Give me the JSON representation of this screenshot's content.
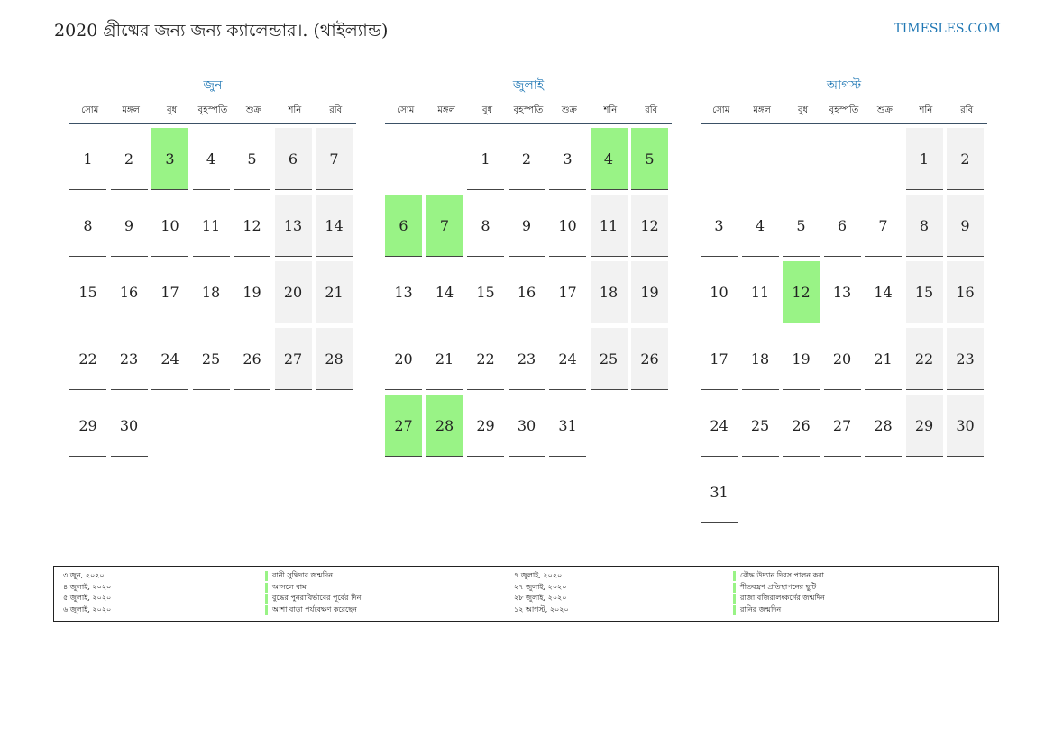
{
  "header": {
    "title": "2020 গ্রীষ্মের জন্য জন্য ক্যালেন্ডার।. (থাইল্যান্ড)",
    "site": "TIMESLES.COM"
  },
  "weekdays": [
    "সোম",
    "মঙ্গল",
    "বুধ",
    "বৃহস্পতি",
    "শুক্র",
    "শনি",
    "রবি"
  ],
  "months": [
    {
      "name": "জুন",
      "weeks": [
        [
          {
            "d": "1"
          },
          {
            "d": "2"
          },
          {
            "d": "3",
            "h": true
          },
          {
            "d": "4"
          },
          {
            "d": "5"
          },
          {
            "d": "6",
            "w": true
          },
          {
            "d": "7",
            "w": true
          }
        ],
        [
          {
            "d": "8"
          },
          {
            "d": "9"
          },
          {
            "d": "10"
          },
          {
            "d": "11"
          },
          {
            "d": "12"
          },
          {
            "d": "13",
            "w": true
          },
          {
            "d": "14",
            "w": true
          }
        ],
        [
          {
            "d": "15"
          },
          {
            "d": "16"
          },
          {
            "d": "17"
          },
          {
            "d": "18"
          },
          {
            "d": "19"
          },
          {
            "d": "20",
            "w": true
          },
          {
            "d": "21",
            "w": true
          }
        ],
        [
          {
            "d": "22"
          },
          {
            "d": "23"
          },
          {
            "d": "24"
          },
          {
            "d": "25"
          },
          {
            "d": "26"
          },
          {
            "d": "27",
            "w": true
          },
          {
            "d": "28",
            "w": true
          }
        ],
        [
          {
            "d": "29"
          },
          {
            "d": "30"
          },
          null,
          null,
          null,
          null,
          null
        ]
      ]
    },
    {
      "name": "জুলাই",
      "weeks": [
        [
          null,
          null,
          {
            "d": "1"
          },
          {
            "d": "2"
          },
          {
            "d": "3"
          },
          {
            "d": "4",
            "h": true
          },
          {
            "d": "5",
            "h": true
          }
        ],
        [
          {
            "d": "6",
            "h": true
          },
          {
            "d": "7",
            "h": true
          },
          {
            "d": "8"
          },
          {
            "d": "9"
          },
          {
            "d": "10"
          },
          {
            "d": "11",
            "w": true
          },
          {
            "d": "12",
            "w": true
          }
        ],
        [
          {
            "d": "13"
          },
          {
            "d": "14"
          },
          {
            "d": "15"
          },
          {
            "d": "16"
          },
          {
            "d": "17"
          },
          {
            "d": "18",
            "w": true
          },
          {
            "d": "19",
            "w": true
          }
        ],
        [
          {
            "d": "20"
          },
          {
            "d": "21"
          },
          {
            "d": "22"
          },
          {
            "d": "23"
          },
          {
            "d": "24"
          },
          {
            "d": "25",
            "w": true
          },
          {
            "d": "26",
            "w": true
          }
        ],
        [
          {
            "d": "27",
            "h": true
          },
          {
            "d": "28",
            "h": true
          },
          {
            "d": "29"
          },
          {
            "d": "30"
          },
          {
            "d": "31"
          },
          null,
          null
        ]
      ]
    },
    {
      "name": "আগস্ট",
      "weeks": [
        [
          null,
          null,
          null,
          null,
          null,
          {
            "d": "1",
            "w": true
          },
          {
            "d": "2",
            "w": true
          }
        ],
        [
          {
            "d": "3"
          },
          {
            "d": "4"
          },
          {
            "d": "5"
          },
          {
            "d": "6"
          },
          {
            "d": "7"
          },
          {
            "d": "8",
            "w": true
          },
          {
            "d": "9",
            "w": true
          }
        ],
        [
          {
            "d": "10"
          },
          {
            "d": "11"
          },
          {
            "d": "12",
            "h": true
          },
          {
            "d": "13"
          },
          {
            "d": "14"
          },
          {
            "d": "15",
            "w": true
          },
          {
            "d": "16",
            "w": true
          }
        ],
        [
          {
            "d": "17"
          },
          {
            "d": "18"
          },
          {
            "d": "19"
          },
          {
            "d": "20"
          },
          {
            "d": "21"
          },
          {
            "d": "22",
            "w": true
          },
          {
            "d": "23",
            "w": true
          }
        ],
        [
          {
            "d": "24"
          },
          {
            "d": "25"
          },
          {
            "d": "26"
          },
          {
            "d": "27"
          },
          {
            "d": "28"
          },
          {
            "d": "29",
            "w": true
          },
          {
            "d": "30",
            "w": true
          }
        ],
        [
          {
            "d": "31"
          },
          null,
          null,
          null,
          null,
          null,
          null
        ]
      ]
    }
  ],
  "legend": [
    {
      "date": "৩ জুন, ২০২০",
      "name": "রানী সুথিদার জন্মদিন"
    },
    {
      "date": "৪ জুলাই, ২০২০",
      "name": "আসলে বাম"
    },
    {
      "date": "৫ জুলাই, ২০২০",
      "name": "বুদ্ধের পুনরাবির্ভাবের পূর্বের দিন"
    },
    {
      "date": "৬ জুলাই, ২০২০",
      "name": "আশা বাড়া পর্যবেক্ষণ করেছেন"
    },
    {
      "date": "৭ জুলাই, ২০২০",
      "name": "বৌদ্ধ উদ্যান দিবস পালন করা"
    },
    {
      "date": "২৭ জুলাই, ২০২০",
      "name": "শীতবস্ত্রণ প্রতিস্থাপনের ছুটি"
    },
    {
      "date": "২৮ জুলাই, ২০২০",
      "name": "রাজা বজিরালংকর্নের জন্মদিন"
    },
    {
      "date": "১২ আগস্ট, ২০২০",
      "name": "রানির জন্মদিন"
    }
  ],
  "colors": {
    "holiday": "#99f386",
    "weekend": "#f2f2f2",
    "accent": "#1f77b4",
    "rule": "#3b5166"
  }
}
